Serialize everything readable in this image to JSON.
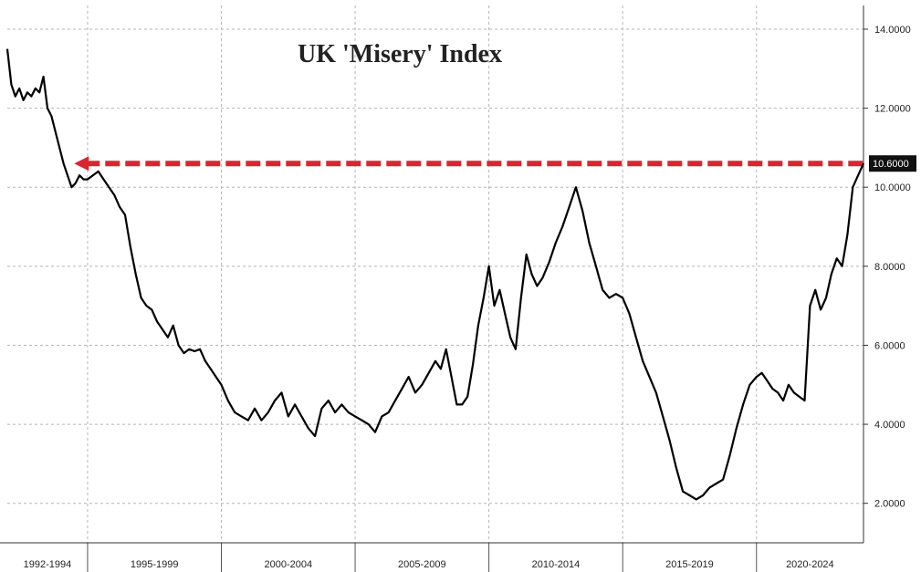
{
  "chart_data": {
    "type": "line",
    "title": "UK 'Misery' Index",
    "xlabel": "",
    "ylabel": "",
    "ylim": [
      1,
      14.6
    ],
    "y_ticks": [
      "2.0000",
      "4.0000",
      "6.0000",
      "8.0000",
      "10.0000",
      "12.0000",
      "14.0000"
    ],
    "y_tick_values": [
      2,
      4,
      6,
      8,
      10,
      12,
      14
    ],
    "y_axis_side": "right",
    "grid": true,
    "categories": [
      "1992-1994",
      "1995-1999",
      "2000-2004",
      "2005-2009",
      "2010-2014",
      "2015-2019",
      "2020-2024"
    ],
    "category_spans": [
      [
        1992,
        1995
      ],
      [
        1995,
        2000
      ],
      [
        2000,
        2005
      ],
      [
        2005,
        2010
      ],
      [
        2010,
        2015
      ],
      [
        2015,
        2020
      ],
      [
        2020,
        2025
      ]
    ],
    "xlim": [
      1992.0,
      2024.0
    ],
    "last_value_label": "10.6000",
    "last_value": 10.6,
    "reference_line": {
      "value": 10.6,
      "from": 1994.5,
      "to": 2024.0,
      "color": "#d9262e",
      "style": "dashed-arrow"
    },
    "line_color": "#000000",
    "series": [
      {
        "x": [
          1992.0,
          1992.15,
          1992.3,
          1992.45,
          1992.6,
          1992.75,
          1992.9,
          1993.05,
          1993.2,
          1993.35,
          1993.5,
          1993.65,
          1993.8,
          1993.95,
          1994.1,
          1994.25,
          1994.4,
          1994.55,
          1994.7,
          1994.85,
          1995.0,
          1995.2,
          1995.4,
          1995.6,
          1995.8,
          1996.0,
          1996.2,
          1996.4,
          1996.6,
          1996.8,
          1997.0,
          1997.2,
          1997.4,
          1997.6,
          1997.8,
          1998.0,
          1998.2,
          1998.4,
          1998.6,
          1998.8,
          1999.0,
          1999.2,
          1999.4,
          1999.6,
          1999.8,
          2000.0,
          2000.25,
          2000.5,
          2000.75,
          2001.0,
          2001.25,
          2001.5,
          2001.75,
          2002.0,
          2002.25,
          2002.5,
          2002.75,
          2003.0,
          2003.25,
          2003.5,
          2003.75,
          2004.0,
          2004.25,
          2004.5,
          2004.75,
          2005.0,
          2005.25,
          2005.5,
          2005.75,
          2006.0,
          2006.25,
          2006.5,
          2006.75,
          2007.0,
          2007.25,
          2007.5,
          2007.75,
          2008.0,
          2008.2,
          2008.4,
          2008.6,
          2008.8,
          2009.0,
          2009.2,
          2009.4,
          2009.6,
          2009.8,
          2010.0,
          2010.2,
          2010.4,
          2010.6,
          2010.8,
          2011.0,
          2011.2,
          2011.4,
          2011.6,
          2011.8,
          2012.0,
          2012.25,
          2012.5,
          2012.75,
          2013.0,
          2013.25,
          2013.5,
          2013.75,
          2014.0,
          2014.25,
          2014.5,
          2014.75,
          2015.0,
          2015.25,
          2015.5,
          2015.75,
          2016.0,
          2016.25,
          2016.5,
          2016.75,
          2017.0,
          2017.25,
          2017.5,
          2017.75,
          2018.0,
          2018.25,
          2018.5,
          2018.75,
          2019.0,
          2019.25,
          2019.5,
          2019.75,
          2020.0,
          2020.2,
          2020.4,
          2020.6,
          2020.8,
          2021.0,
          2021.2,
          2021.4,
          2021.6,
          2021.8,
          2022.0,
          2022.2,
          2022.4,
          2022.6,
          2022.8,
          2023.0,
          2023.2,
          2023.4,
          2023.6,
          2023.8,
          2024.0
        ],
        "values": [
          13.5,
          12.6,
          12.3,
          12.5,
          12.2,
          12.4,
          12.3,
          12.5,
          12.4,
          12.8,
          12.0,
          11.8,
          11.4,
          11.0,
          10.6,
          10.3,
          10.0,
          10.1,
          10.3,
          10.2,
          10.2,
          10.3,
          10.4,
          10.2,
          10.0,
          9.8,
          9.5,
          9.3,
          8.5,
          7.8,
          7.2,
          7.0,
          6.9,
          6.6,
          6.4,
          6.2,
          6.5,
          6.0,
          5.8,
          5.9,
          5.85,
          5.9,
          5.6,
          5.4,
          5.2,
          5.0,
          4.6,
          4.3,
          4.2,
          4.1,
          4.4,
          4.1,
          4.3,
          4.6,
          4.8,
          4.2,
          4.5,
          4.2,
          3.9,
          3.7,
          4.4,
          4.6,
          4.3,
          4.5,
          4.3,
          4.2,
          4.1,
          4.0,
          3.8,
          4.2,
          4.3,
          4.6,
          4.9,
          5.2,
          4.8,
          5.0,
          5.3,
          5.6,
          5.4,
          5.9,
          5.2,
          4.5,
          4.5,
          4.7,
          5.5,
          6.5,
          7.2,
          8.0,
          7.0,
          7.4,
          6.8,
          6.2,
          5.9,
          7.2,
          8.3,
          7.8,
          7.5,
          7.7,
          8.1,
          8.6,
          9.0,
          9.5,
          10.0,
          9.4,
          8.6,
          8.0,
          7.4,
          7.2,
          7.3,
          7.2,
          6.8,
          6.2,
          5.6,
          5.2,
          4.8,
          4.2,
          3.6,
          2.9,
          2.3,
          2.2,
          2.1,
          2.2,
          2.4,
          2.5,
          2.6,
          3.2,
          3.9,
          4.5,
          5.0,
          5.2,
          5.3,
          5.1,
          4.9,
          4.8,
          4.6,
          5.0,
          4.8,
          4.7,
          4.6,
          7.0,
          7.4,
          6.9,
          7.2,
          7.8,
          8.2,
          8.0,
          8.8,
          10.0,
          10.3,
          10.6
        ]
      }
    ]
  }
}
